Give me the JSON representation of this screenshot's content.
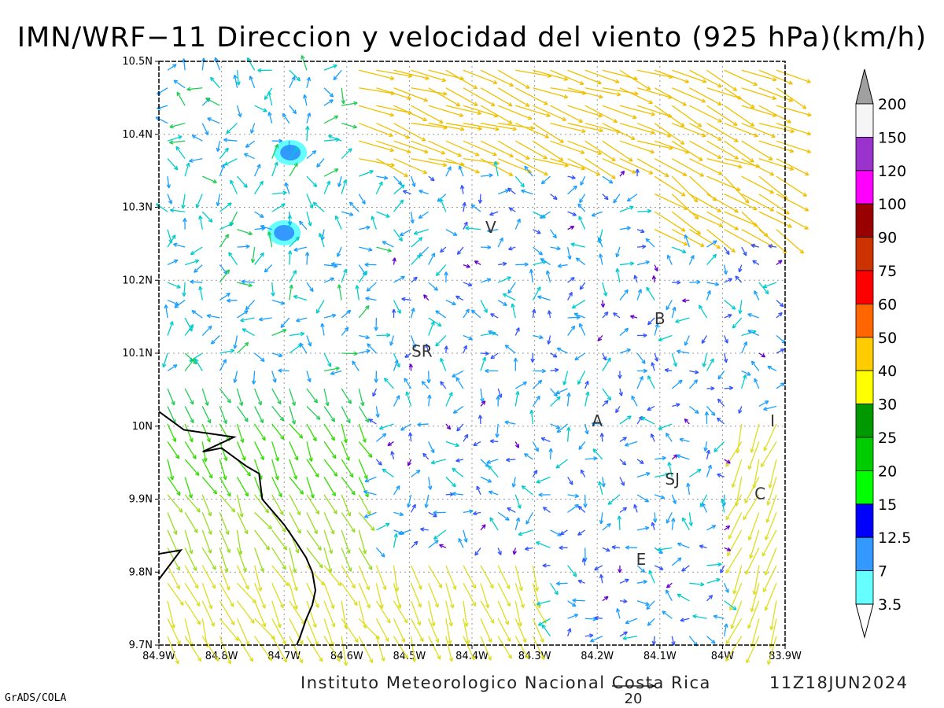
{
  "title": "IMN/WRF−11 Direccion y velocidad del viento (925 hPa)(km/h)",
  "footer": {
    "credit": "Instituto Meteorologico Nacional Costa Rica",
    "run": "11Z18JUN2024",
    "software": "GrADS/COLA"
  },
  "reference_vector": {
    "value": "20"
  },
  "axes": {
    "lon_ticks": [
      "84.9W",
      "84.8W",
      "84.7W",
      "84.6W",
      "84.5W",
      "84.4W",
      "84.3W",
      "84.2W",
      "84.1W",
      "84W",
      "83.9W"
    ],
    "lat_ticks": [
      "9.7N",
      "9.8N",
      "9.9N",
      "10N",
      "10.1N",
      "10.2N",
      "10.3N",
      "10.4N",
      "10.5N"
    ],
    "lon_range": [
      -84.9,
      -83.9
    ],
    "lat_range": [
      9.7,
      10.5
    ],
    "grid": "dotted"
  },
  "station_labels": [
    {
      "text": "V",
      "lon": -84.37,
      "lat": 10.265
    },
    {
      "text": "B",
      "lon": -84.1,
      "lat": 10.14
    },
    {
      "text": "SR",
      "lon": -84.48,
      "lat": 10.095
    },
    {
      "text": "A",
      "lon": -84.2,
      "lat": 10.0
    },
    {
      "text": "I",
      "lon": -83.92,
      "lat": 10.0
    },
    {
      "text": "SJ",
      "lon": -84.08,
      "lat": 9.92
    },
    {
      "text": "C",
      "lon": -83.94,
      "lat": 9.9
    },
    {
      "text": "E",
      "lon": -84.13,
      "lat": 9.81
    }
  ],
  "colorbar": {
    "labels": [
      "200",
      "150",
      "120",
      "100",
      "90",
      "75",
      "60",
      "50",
      "40",
      "30",
      "25",
      "20",
      "15",
      "12.5",
      "7",
      "3.5"
    ],
    "bins": [
      {
        "color": "#a0a0a0"
      },
      {
        "color": "#f5f5f5"
      },
      {
        "color": "#9933cc"
      },
      {
        "color": "#ff00ff"
      },
      {
        "color": "#990000"
      },
      {
        "color": "#cc3300"
      },
      {
        "color": "#ff0000"
      },
      {
        "color": "#ff6600"
      },
      {
        "color": "#ffcc00"
      },
      {
        "color": "#ffff00"
      },
      {
        "color": "#009900"
      },
      {
        "color": "#00cc00"
      },
      {
        "color": "#00ff00"
      },
      {
        "color": "#0000ff"
      },
      {
        "color": "#3399ff"
      },
      {
        "color": "#66ffff"
      },
      {
        "color": "#ffffff"
      }
    ]
  },
  "wind_regions": [
    {
      "name": "north-ese-stream",
      "speed_kmh": 45,
      "direction": "ESE"
    },
    {
      "name": "northwest-turbulent",
      "speed_kmh": 10,
      "direction": "variable"
    },
    {
      "name": "southwest-sse-flow",
      "speed_kmh": 20,
      "direction": "SSE"
    },
    {
      "name": "central-valley-calm",
      "speed_kmh": 5,
      "direction": "variable"
    },
    {
      "name": "east-strong-inflow",
      "speed_kmh": 40,
      "direction": "SE"
    }
  ],
  "shaded_maxima": [
    {
      "lon": -84.69,
      "lat": 10.375,
      "speed_kmh": 7
    },
    {
      "lon": -84.7,
      "lat": 10.265,
      "speed_kmh": 7
    }
  ],
  "coastline": [
    [
      -84.9,
      10.02
    ],
    [
      -84.86,
      9.995
    ],
    [
      -84.82,
      9.99
    ],
    [
      -84.78,
      9.985
    ],
    [
      -84.83,
      9.965
    ],
    [
      -84.8,
      9.97
    ],
    [
      -84.76,
      9.945
    ],
    [
      -84.74,
      9.935
    ],
    [
      -84.735,
      9.9
    ],
    [
      -84.72,
      9.885
    ],
    [
      -84.7,
      9.865
    ],
    [
      -84.68,
      9.84
    ],
    [
      -84.665,
      9.82
    ],
    [
      -84.655,
      9.8
    ],
    [
      -84.65,
      9.775
    ],
    [
      -84.655,
      9.755
    ],
    [
      -84.665,
      9.735
    ],
    [
      -84.675,
      9.71
    ],
    [
      -84.68,
      9.7
    ]
  ],
  "coastline_sw": [
    [
      -84.9,
      9.825
    ],
    [
      -84.865,
      9.83
    ],
    [
      -84.9,
      9.79
    ]
  ]
}
